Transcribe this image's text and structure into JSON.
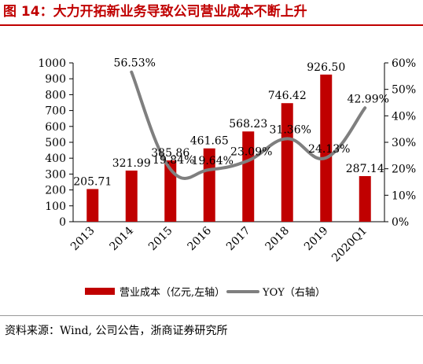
{
  "title": "图 14：大力开拓新业务导致公司营业成本不断上升",
  "source": "资料来源：Wind, 公司公告，浙商证券研究所",
  "colors": {
    "title": "#c00000",
    "bar": "#c00000",
    "line": "#7f7f7f"
  },
  "chart_data": {
    "type": "bar+line",
    "categories": [
      "2013",
      "2014",
      "2015",
      "2016",
      "2017",
      "2018",
      "2019",
      "2020Q1"
    ],
    "series": [
      {
        "name": "营业成本（亿元,左轴）",
        "kind": "bar",
        "axis": "left",
        "values": [
          205.71,
          321.99,
          385.86,
          461.65,
          568.23,
          746.42,
          926.5,
          287.14
        ],
        "labels": [
          "205.71",
          "321.99",
          "385.86",
          "461.65",
          "568.23",
          "746.42",
          "926.50",
          "287.14"
        ]
      },
      {
        "name": "YOY（右轴）",
        "kind": "line",
        "axis": "right",
        "values": [
          null,
          56.53,
          19.84,
          19.64,
          23.09,
          31.36,
          24.13,
          42.99
        ],
        "labels": [
          "",
          "56.53%",
          "19.84%",
          "19.64%",
          "23.09%",
          "31.36%",
          "24.13%",
          "42.99%"
        ]
      }
    ],
    "y_left": {
      "min": 0,
      "max": 1000,
      "step": 100,
      "ticks": [
        "0",
        "100",
        "200",
        "300",
        "400",
        "500",
        "600",
        "700",
        "800",
        "900",
        "1000"
      ]
    },
    "y_right": {
      "min": 0,
      "max": 60,
      "step": 10,
      "ticks": [
        "0%",
        "10%",
        "20%",
        "30%",
        "40%",
        "50%",
        "60%"
      ]
    },
    "legend_position": "bottom",
    "grid": false
  }
}
